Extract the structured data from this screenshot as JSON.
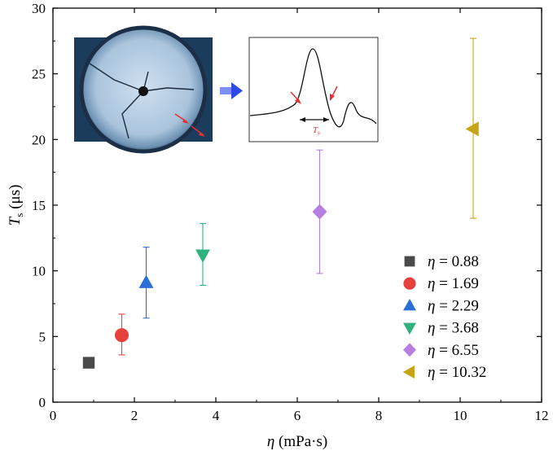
{
  "chart_data": {
    "type": "scatter",
    "xlabel": "(mPa·s)",
    "xlabel_symbol": "η",
    "ylabel": "(μs)",
    "ylabel_symbol": "T",
    "ylabel_subscript": "s",
    "xlim": [
      0,
      12
    ],
    "ylim": [
      0,
      30
    ],
    "xticks": [
      0,
      2,
      4,
      6,
      8,
      10,
      12
    ],
    "yticks": [
      0,
      5,
      10,
      15,
      20,
      25,
      30
    ],
    "legend_position": "bottom-right",
    "series": [
      {
        "name": "η = 0.88",
        "symbol": "η",
        "label": "= 0.88",
        "x": 0.88,
        "y": 3.0,
        "err_low": 3.0,
        "err_high": 3.0,
        "marker": "square",
        "color": "#4a4a4a"
      },
      {
        "name": "η = 1.69",
        "symbol": "η",
        "label": "= 1.69",
        "x": 1.69,
        "y": 5.1,
        "err_low": 3.6,
        "err_high": 6.7,
        "marker": "circle",
        "color": "#e8403c"
      },
      {
        "name": "η = 2.29",
        "symbol": "η",
        "label": "= 2.29",
        "x": 2.29,
        "y": 9.1,
        "err_low": 6.4,
        "err_high": 11.8,
        "marker": "triangle-up",
        "color": "#2a6fd6"
      },
      {
        "name": "η = 3.68",
        "symbol": "η",
        "label": "= 3.68",
        "x": 3.68,
        "y": 11.2,
        "err_low": 8.9,
        "err_high": 13.6,
        "marker": "triangle-down",
        "color": "#2fb27d"
      },
      {
        "name": "η = 6.55",
        "symbol": "η",
        "label": "= 6.55",
        "x": 6.55,
        "y": 14.5,
        "err_low": 9.8,
        "err_high": 19.2,
        "marker": "diamond",
        "color": "#b57ee0"
      },
      {
        "name": "η = 10.32",
        "symbol": "η",
        "label": "= 10.32",
        "x": 10.32,
        "y": 20.8,
        "err_low": 14.0,
        "err_high": 27.7,
        "marker": "triangle-left",
        "color": "#c9a316"
      }
    ],
    "inset": {
      "signal_label": "T",
      "signal_label_subscript": "s",
      "arrow_color": "#e53030",
      "pointer_arrow_color": "#2f48e8"
    }
  }
}
